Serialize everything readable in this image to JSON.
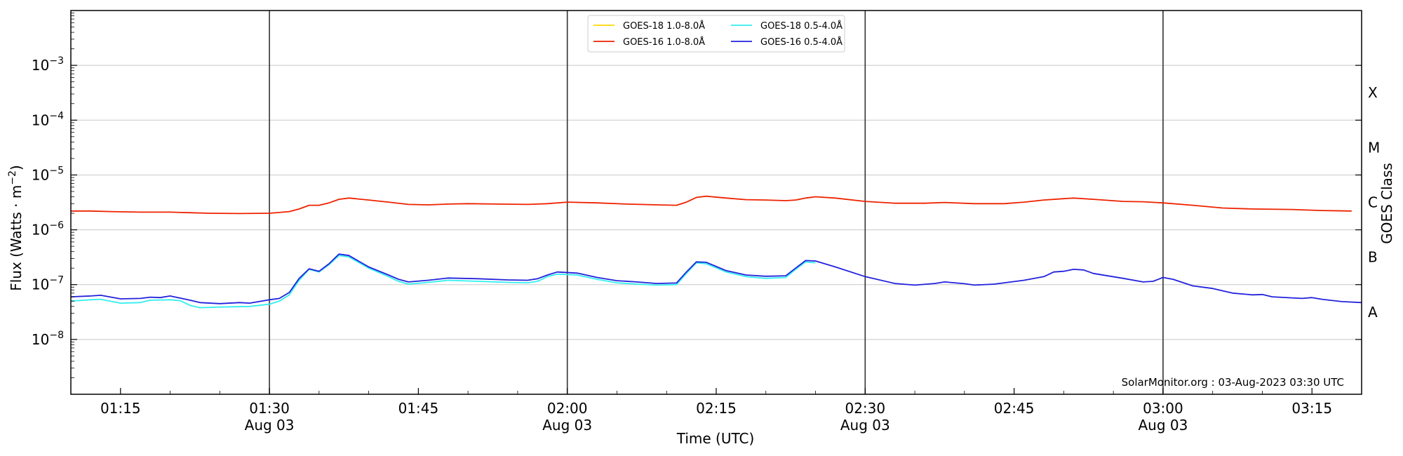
{
  "chart_data": {
    "type": "line",
    "xlabel": "Time (UTC)",
    "ylabel": "Flux (Watts · m",
    "ylabel_sup": "−2",
    "ylabel_close": ")",
    "ylabel_right": "GOES Class",
    "credit": "SolarMonitor.org : 03-Aug-2023 03:30 UTC",
    "xscale": "time",
    "xlim": [
      "01:10",
      "03:20"
    ],
    "yscale": "log",
    "ylim": [
      1e-09,
      0.01
    ],
    "grid": "horizontal",
    "legend_position": "top-center",
    "yticks": [
      {
        "value": 1e-08,
        "base": "10",
        "exp": "−8"
      },
      {
        "value": 1e-07,
        "base": "10",
        "exp": "−7"
      },
      {
        "value": 1e-06,
        "base": "10",
        "exp": "−6"
      },
      {
        "value": 1e-05,
        "base": "10",
        "exp": "−5"
      },
      {
        "value": 0.0001,
        "base": "10",
        "exp": "−4"
      },
      {
        "value": 0.001,
        "base": "10",
        "exp": "−3"
      }
    ],
    "goes_classes": [
      {
        "label": "A",
        "value": 3.162e-08
      },
      {
        "label": "B",
        "value": 3.162e-07
      },
      {
        "label": "C",
        "value": 3.162e-06
      },
      {
        "label": "M",
        "value": 3.162e-05
      },
      {
        "label": "X",
        "value": 0.0003162
      }
    ],
    "xticks": [
      {
        "time": "01:15",
        "label": "01:15",
        "date": ""
      },
      {
        "time": "01:30",
        "label": "01:30",
        "date": "Aug 03"
      },
      {
        "time": "01:45",
        "label": "01:45",
        "date": ""
      },
      {
        "time": "02:00",
        "label": "02:00",
        "date": "Aug 03"
      },
      {
        "time": "02:15",
        "label": "02:15",
        "date": ""
      },
      {
        "time": "02:30",
        "label": "02:30",
        "date": "Aug 03"
      },
      {
        "time": "02:45",
        "label": "02:45",
        "date": ""
      },
      {
        "time": "03:00",
        "label": "03:00",
        "date": "Aug 03"
      },
      {
        "time": "03:15",
        "label": "03:15",
        "date": ""
      }
    ],
    "vlines": [
      "01:30",
      "02:00",
      "02:30",
      "03:00"
    ],
    "series": [
      {
        "name": "GOES-18 1.0-8.0Å",
        "color": "#ffd700",
        "points": []
      },
      {
        "name": "GOES-16 1.0-8.0Å",
        "color": "#ee2200",
        "points": [
          [
            "01:10",
            2.2e-06
          ],
          [
            "01:12",
            2.2e-06
          ],
          [
            "01:14",
            2.15e-06
          ],
          [
            "01:17",
            2.1e-06
          ],
          [
            "01:20",
            2.1e-06
          ],
          [
            "01:22",
            2.05e-06
          ],
          [
            "01:24",
            2e-06
          ],
          [
            "01:27",
            1.98e-06
          ],
          [
            "01:30",
            2e-06
          ],
          [
            "01:32",
            2.15e-06
          ],
          [
            "01:33",
            2.4e-06
          ],
          [
            "01:34",
            2.8e-06
          ],
          [
            "01:35",
            2.8e-06
          ],
          [
            "01:36",
            3.1e-06
          ],
          [
            "01:37",
            3.6e-06
          ],
          [
            "01:38",
            3.8e-06
          ],
          [
            "01:40",
            3.5e-06
          ],
          [
            "01:42",
            3.2e-06
          ],
          [
            "01:44",
            2.9e-06
          ],
          [
            "01:46",
            2.85e-06
          ],
          [
            "01:48",
            2.95e-06
          ],
          [
            "01:50",
            3e-06
          ],
          [
            "01:53",
            2.95e-06
          ],
          [
            "01:56",
            2.9e-06
          ],
          [
            "01:58",
            3e-06
          ],
          [
            "02:00",
            3.2e-06
          ],
          [
            "02:03",
            3.1e-06
          ],
          [
            "02:06",
            2.95e-06
          ],
          [
            "02:09",
            2.85e-06
          ],
          [
            "02:11",
            2.8e-06
          ],
          [
            "02:12",
            3.2e-06
          ],
          [
            "02:13",
            3.9e-06
          ],
          [
            "02:14",
            4.1e-06
          ],
          [
            "02:16",
            3.8e-06
          ],
          [
            "02:18",
            3.55e-06
          ],
          [
            "02:20",
            3.5e-06
          ],
          [
            "02:22",
            3.4e-06
          ],
          [
            "02:23",
            3.5e-06
          ],
          [
            "02:24",
            3.8e-06
          ],
          [
            "02:25",
            4e-06
          ],
          [
            "02:27",
            3.8e-06
          ],
          [
            "02:30",
            3.3e-06
          ],
          [
            "02:33",
            3.05e-06
          ],
          [
            "02:36",
            3.05e-06
          ],
          [
            "02:38",
            3.15e-06
          ],
          [
            "02:41",
            3e-06
          ],
          [
            "02:44",
            3e-06
          ],
          [
            "02:46",
            3.2e-06
          ],
          [
            "02:48",
            3.5e-06
          ],
          [
            "02:50",
            3.7e-06
          ],
          [
            "02:51",
            3.8e-06
          ],
          [
            "02:53",
            3.6e-06
          ],
          [
            "02:56",
            3.3e-06
          ],
          [
            "02:58",
            3.25e-06
          ],
          [
            "03:00",
            3.1e-06
          ],
          [
            "03:03",
            2.8e-06
          ],
          [
            "03:06",
            2.5e-06
          ],
          [
            "03:09",
            2.4e-06
          ],
          [
            "03:13",
            2.35e-06
          ],
          [
            "03:16",
            2.25e-06
          ],
          [
            "03:19",
            2.2e-06
          ]
        ]
      },
      {
        "name": "GOES-18 0.5-4.0Å",
        "color": "#33eeee",
        "points": [
          [
            "01:10",
            5e-08
          ],
          [
            "01:12",
            5.3e-08
          ],
          [
            "01:13",
            5.4e-08
          ],
          [
            "01:15",
            4.6e-08
          ],
          [
            "01:17",
            4.7e-08
          ],
          [
            "01:18",
            5.2e-08
          ],
          [
            "01:20",
            5.3e-08
          ],
          [
            "01:21",
            5.1e-08
          ],
          [
            "01:22",
            4.2e-08
          ],
          [
            "01:23",
            3.8e-08
          ],
          [
            "01:25",
            3.9e-08
          ],
          [
            "01:28",
            4e-08
          ],
          [
            "01:30",
            4.4e-08
          ],
          [
            "01:31",
            5e-08
          ],
          [
            "01:32",
            6.5e-08
          ],
          [
            "01:33",
            1.2e-07
          ],
          [
            "01:34",
            1.9e-07
          ],
          [
            "01:35",
            1.7e-07
          ],
          [
            "01:36",
            2.3e-07
          ],
          [
            "01:37",
            3.4e-07
          ],
          [
            "01:38",
            3.2e-07
          ],
          [
            "01:40",
            2e-07
          ],
          [
            "01:42",
            1.4e-07
          ],
          [
            "01:43",
            1.15e-07
          ],
          [
            "01:44",
            1.02e-07
          ],
          [
            "01:46",
            1.1e-07
          ],
          [
            "01:48",
            1.2e-07
          ],
          [
            "01:51",
            1.15e-07
          ],
          [
            "01:54",
            1.1e-07
          ],
          [
            "01:56",
            1.08e-07
          ],
          [
            "01:57",
            1.15e-07
          ],
          [
            "01:58",
            1.4e-07
          ],
          [
            "01:59",
            1.55e-07
          ],
          [
            "02:01",
            1.5e-07
          ],
          [
            "02:03",
            1.25e-07
          ],
          [
            "02:05",
            1.08e-07
          ],
          [
            "02:07",
            1.02e-07
          ],
          [
            "02:09",
            9.8e-08
          ],
          [
            "02:11",
            1e-07
          ],
          [
            "02:12",
            1.6e-07
          ],
          [
            "02:13",
            2.5e-07
          ],
          [
            "02:14",
            2.4e-07
          ],
          [
            "02:16",
            1.7e-07
          ],
          [
            "02:18",
            1.4e-07
          ],
          [
            "02:20",
            1.3e-07
          ],
          [
            "02:22",
            1.35e-07
          ],
          [
            "02:23",
            1.9e-07
          ],
          [
            "02:24",
            2.6e-07
          ],
          [
            "02:25",
            2.5e-07
          ]
        ]
      },
      {
        "name": "GOES-16 0.5-4.0Å",
        "color": "#2222dd",
        "points": [
          [
            "01:10",
            6e-08
          ],
          [
            "01:12",
            6.2e-08
          ],
          [
            "01:13",
            6.4e-08
          ],
          [
            "01:15",
            5.5e-08
          ],
          [
            "01:17",
            5.6e-08
          ],
          [
            "01:18",
            5.9e-08
          ],
          [
            "01:19",
            5.8e-08
          ],
          [
            "01:20",
            6.2e-08
          ],
          [
            "01:22",
            5.2e-08
          ],
          [
            "01:23",
            4.7e-08
          ],
          [
            "01:25",
            4.5e-08
          ],
          [
            "01:27",
            4.7e-08
          ],
          [
            "01:28",
            4.6e-08
          ],
          [
            "01:30",
            5.3e-08
          ],
          [
            "01:31",
            5.6e-08
          ],
          [
            "01:32",
            7.2e-08
          ],
          [
            "01:33",
            1.3e-07
          ],
          [
            "01:34",
            1.95e-07
          ],
          [
            "01:35",
            1.75e-07
          ],
          [
            "01:36",
            2.4e-07
          ],
          [
            "01:37",
            3.6e-07
          ],
          [
            "01:38",
            3.4e-07
          ],
          [
            "01:40",
            2.1e-07
          ],
          [
            "01:42",
            1.5e-07
          ],
          [
            "01:43",
            1.25e-07
          ],
          [
            "01:44",
            1.12e-07
          ],
          [
            "01:46",
            1.2e-07
          ],
          [
            "01:48",
            1.32e-07
          ],
          [
            "01:51",
            1.28e-07
          ],
          [
            "01:54",
            1.22e-07
          ],
          [
            "01:56",
            1.2e-07
          ],
          [
            "01:57",
            1.28e-07
          ],
          [
            "01:58",
            1.5e-07
          ],
          [
            "01:59",
            1.7e-07
          ],
          [
            "02:01",
            1.62e-07
          ],
          [
            "02:03",
            1.35e-07
          ],
          [
            "02:05",
            1.18e-07
          ],
          [
            "02:07",
            1.12e-07
          ],
          [
            "02:09",
            1.05e-07
          ],
          [
            "02:11",
            1.07e-07
          ],
          [
            "02:12",
            1.7e-07
          ],
          [
            "02:13",
            2.6e-07
          ],
          [
            "02:14",
            2.55e-07
          ],
          [
            "02:16",
            1.8e-07
          ],
          [
            "02:18",
            1.5e-07
          ],
          [
            "02:20",
            1.42e-07
          ],
          [
            "02:22",
            1.45e-07
          ],
          [
            "02:23",
            2e-07
          ],
          [
            "02:24",
            2.75e-07
          ],
          [
            "02:25",
            2.7e-07
          ],
          [
            "02:27",
            2.1e-07
          ],
          [
            "02:30",
            1.4e-07
          ],
          [
            "02:33",
            1.05e-07
          ],
          [
            "02:35",
            9.8e-08
          ],
          [
            "02:37",
            1.05e-07
          ],
          [
            "02:38",
            1.12e-07
          ],
          [
            "02:40",
            1.04e-07
          ],
          [
            "02:41",
            9.8e-08
          ],
          [
            "02:43",
            1.02e-07
          ],
          [
            "02:46",
            1.2e-07
          ],
          [
            "02:48",
            1.4e-07
          ],
          [
            "02:49",
            1.7e-07
          ],
          [
            "02:50",
            1.75e-07
          ],
          [
            "02:51",
            1.9e-07
          ],
          [
            "02:52",
            1.85e-07
          ],
          [
            "02:53",
            1.6e-07
          ],
          [
            "02:56",
            1.3e-07
          ],
          [
            "02:58",
            1.12e-07
          ],
          [
            "02:59",
            1.15e-07
          ],
          [
            "03:00",
            1.35e-07
          ],
          [
            "03:01",
            1.25e-07
          ],
          [
            "03:03",
            9.5e-08
          ],
          [
            "03:05",
            8.5e-08
          ],
          [
            "03:07",
            7e-08
          ],
          [
            "03:09",
            6.5e-08
          ],
          [
            "03:10",
            6.6e-08
          ],
          [
            "03:11",
            6e-08
          ],
          [
            "03:14",
            5.6e-08
          ],
          [
            "03:15",
            5.8e-08
          ],
          [
            "03:16",
            5.4e-08
          ],
          [
            "03:18",
            4.9e-08
          ],
          [
            "03:20",
            4.7e-08
          ]
        ]
      }
    ]
  }
}
